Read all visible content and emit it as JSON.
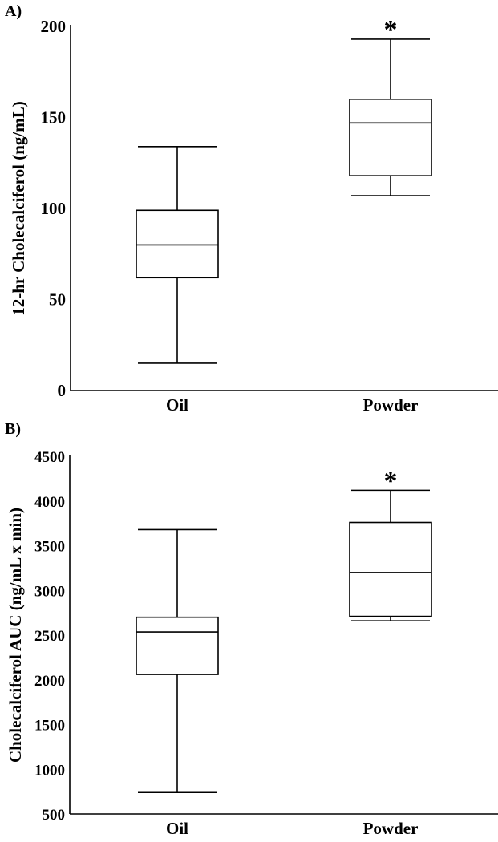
{
  "chart_data": [
    {
      "type": "box",
      "panel_label": "A)",
      "title": "",
      "xlabel": "",
      "ylabel": "12-hr Cholecalciferol (ng/mL)",
      "ylim": [
        0,
        200
      ],
      "yticks": [
        "0",
        "50",
        "100",
        "150",
        "200"
      ],
      "grid": false,
      "categories": [
        "Oil",
        "Powder"
      ],
      "boxes": [
        {
          "category": "Oil",
          "min": 15,
          "q1": 62,
          "median": 80,
          "q3": 99,
          "max": 134,
          "annotation": ""
        },
        {
          "category": "Powder",
          "min": 107,
          "q1": 118,
          "median": 147,
          "q3": 160,
          "max": 193,
          "annotation": "*"
        }
      ]
    },
    {
      "type": "box",
      "panel_label": "B)",
      "title": "",
      "xlabel": "",
      "ylabel": "Cholecalciferol AUC (ng/mL x min)",
      "ylim": [
        500,
        4500
      ],
      "yticks": [
        "500",
        "1000",
        "1500",
        "2000",
        "2500",
        "3000",
        "3500",
        "4000",
        "4500"
      ],
      "grid": false,
      "categories": [
        "Oil",
        "Powder"
      ],
      "boxes": [
        {
          "category": "Oil",
          "min": 740,
          "q1": 2060,
          "median": 2535,
          "q3": 2700,
          "max": 3680,
          "annotation": ""
        },
        {
          "category": "Powder",
          "min": 2660,
          "q1": 2710,
          "median": 3200,
          "q3": 3760,
          "max": 4120,
          "annotation": "*"
        }
      ]
    }
  ]
}
